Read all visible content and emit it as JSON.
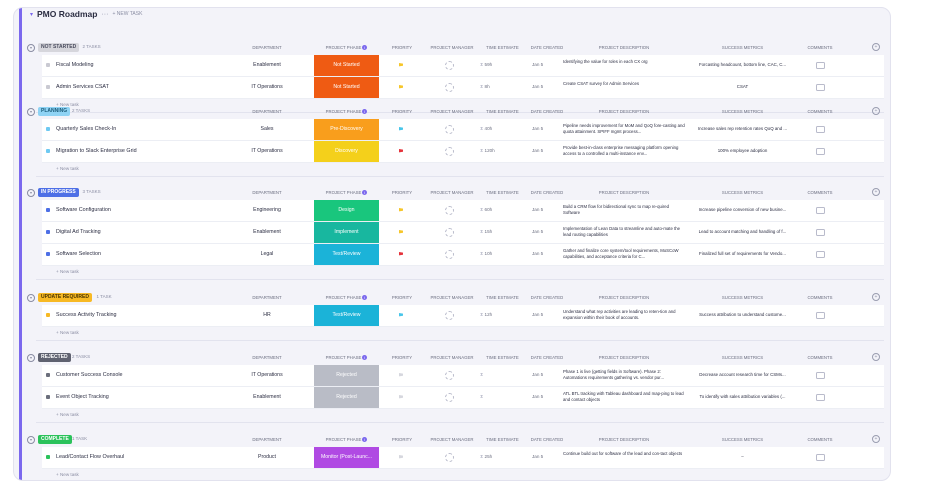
{
  "list": {
    "title": "PMO Roadmap",
    "menu": "···",
    "new_task_top": "+ NEW TASK",
    "fold_icon": "chevron-down-icon"
  },
  "columns": {
    "department": "DEPARTMENT",
    "project_phase": "PROJECT PHASE",
    "priority": "PRIORITY",
    "project_manager": "PROJECT MANAGER",
    "time_estimate": "TIME ESTIMATE",
    "date_created": "DATE CREATED",
    "project_description": "PROJECT DESCRIPTION",
    "success_metrics": "SUCCESS METRICS",
    "comments": "COMMENTS"
  },
  "new_task_label": "+ New task",
  "groups": [
    {
      "status": "NOT STARTED",
      "count": "2 TASKS",
      "color": "#d6d6dc",
      "text_color": "#4a4c5e",
      "tasks": [
        {
          "name": "Fiscal Modeling",
          "dept": "Enablement",
          "phase": "Not Started",
          "phase_color": "#ef5b13",
          "prio": "#f6c62a",
          "time": "59h",
          "date": "Jan 5",
          "desc": "Identifying the value for roles in each CX org",
          "metrics": "Forcasting headcount, bottom line, CAC, C...",
          "dot": "#c9c9d2"
        },
        {
          "name": "Admin Services CSAT",
          "dept": "IT Operations",
          "phase": "Not Started",
          "phase_color": "#ef5b13",
          "prio": "#f6c62a",
          "time": "8h",
          "date": "Jan 5",
          "desc": "Create CSAT survey for Admin Services",
          "metrics": "CSAT",
          "dot": "#c9c9d2"
        }
      ]
    },
    {
      "status": "PLANNING",
      "count": "2 TASKS",
      "color": "#8fd3f4",
      "text_color": "#1b5c7a",
      "tasks": [
        {
          "name": "Quarterly Sales Check-In",
          "dept": "Sales",
          "phase": "Pre-Discovery",
          "phase_color": "#f99e1c",
          "prio": "#49c6ea",
          "time": "40h",
          "date": "Jan 5",
          "desc": "Pipeline needs improvement for MoM and QoQ fore-casting and quota attainment.  SPIFF mgmt process...",
          "metrics": "Increase sales rep retention rates QoQ and ...",
          "dot": "#6ec9f2"
        },
        {
          "name": "Migration to Slack Enterprise Grid",
          "dept": "IT Operations",
          "phase": "Discovery",
          "phase_color": "#f4d01b",
          "prio": "#e5333b",
          "time": "120h",
          "date": "Jan 5",
          "desc": "Provide best-in-class enterprise messaging platform opening access to a controlled a multi-instance env...",
          "metrics": "100% employee adoption",
          "dot": "#6ec9f2"
        }
      ]
    },
    {
      "status": "IN PROGRESS",
      "count": "3 TASKS",
      "color": "#4d6fe6",
      "text_color": "#ffffff",
      "tasks": [
        {
          "name": "Software Configuration",
          "dept": "Engineering",
          "phase": "Design",
          "phase_color": "#19c67d",
          "prio": "#f6c62a",
          "time": "60h",
          "date": "Jan 5",
          "desc": "Build a CRM flow for bidirectional sync to map re-quired Software",
          "metrics": "Increase pipeline conversion of new busine...",
          "dot": "#4d6fe6"
        },
        {
          "name": "Digital Ad Tracking",
          "dept": "Enablement",
          "phase": "Implement",
          "phase_color": "#18b79f",
          "prio": "#f6c62a",
          "time": "15h",
          "date": "Jan 5",
          "desc": "Implementation of Lean Data to streamline and auto-mate the lead routing capabilities",
          "metrics": "Lead to account matching and handling of f...",
          "dot": "#4d6fe6"
        },
        {
          "name": "Software Selection",
          "dept": "Legal",
          "phase": "Test/Review",
          "phase_color": "#1bb3d8",
          "prio": "#e5333b",
          "time": "10h",
          "date": "Jan 5",
          "desc": "Gather and finalize core system/tool requirements, MoSCoW capabilities, and acceptance criteria for C...",
          "metrics": "Finalized full set of requirements for Vendo...",
          "dot": "#4d6fe6"
        }
      ]
    },
    {
      "status": "UPDATE REQUIRED",
      "count": "1 TASK",
      "color": "#f7b924",
      "text_color": "#4a3500",
      "tasks": [
        {
          "name": "Success Activity Tracking",
          "dept": "HR",
          "phase": "Test/Review",
          "phase_color": "#1bb3d8",
          "prio": "#49c6ea",
          "time": "12h",
          "date": "Jan 5",
          "desc": "Understand what rep activities are leading to reten-tion and expansion within their book of accounts.",
          "metrics": "Success attribution to understand custome...",
          "dot": "#f7b924"
        }
      ]
    },
    {
      "status": "REJECTED",
      "count": "2 TASKS",
      "color": "#5f6270",
      "text_color": "#ffffff",
      "tasks": [
        {
          "name": "Customer Success Console",
          "dept": "IT Operations",
          "phase": "Rejected",
          "phase_color": "#b9bcc6",
          "prio": "#d6d7de",
          "time": "",
          "date": "Jan 5",
          "desc": "Phase 1 is live (getting fields in Software).  Phase 2: Automations requirements gathering vs. vendor pur...",
          "metrics": "Decrease account research time for CSMs...",
          "dot": "#6b6e7c"
        },
        {
          "name": "Event Object Tracking",
          "dept": "Enablement",
          "phase": "Rejected",
          "phase_color": "#b9bcc6",
          "prio": "#d6d7de",
          "time": "",
          "date": "Jan 5",
          "desc": "ATL BTL tracking with Tableau dashboard and map-ping to lead and contact objects",
          "metrics": "To identify with sales attribution variables (...",
          "dot": "#6b6e7c"
        }
      ]
    },
    {
      "status": "COMPLETE",
      "count": "1 TASK",
      "color": "#2bc25b",
      "text_color": "#ffffff",
      "tasks": [
        {
          "name": "Lead/Contact Flow Overhaul",
          "dept": "Product",
          "phase": "Monitor (Post-Launc...",
          "phase_color": "#b04ae3",
          "prio": "#d6d7de",
          "time": "25h",
          "date": "Jan 5",
          "desc": "Continue build out for software of the lead and con-tact objects",
          "metrics": "–",
          "dot": "#2bc25b"
        }
      ]
    }
  ]
}
